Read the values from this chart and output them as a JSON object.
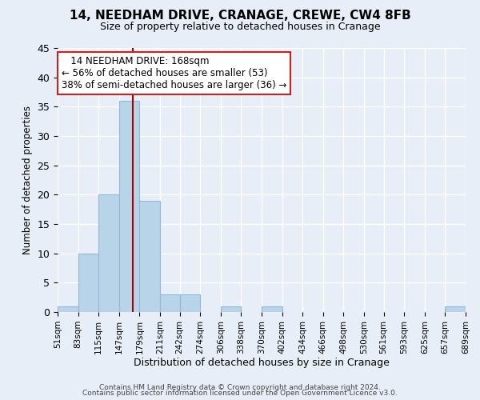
{
  "title": "14, NEEDHAM DRIVE, CRANAGE, CREWE, CW4 8FB",
  "subtitle": "Size of property relative to detached houses in Cranage",
  "xlabel": "Distribution of detached houses by size in Cranage",
  "ylabel": "Number of detached properties",
  "bin_edges": [
    51,
    83,
    115,
    147,
    179,
    211,
    242,
    274,
    306,
    338,
    370,
    402,
    434,
    466,
    498,
    530,
    561,
    593,
    625,
    657,
    689
  ],
  "bin_labels": [
    "51sqm",
    "83sqm",
    "115sqm",
    "147sqm",
    "179sqm",
    "211sqm",
    "242sqm",
    "274sqm",
    "306sqm",
    "338sqm",
    "370sqm",
    "402sqm",
    "434sqm",
    "466sqm",
    "498sqm",
    "530sqm",
    "561sqm",
    "593sqm",
    "625sqm",
    "657sqm",
    "689sqm"
  ],
  "counts": [
    1,
    10,
    20,
    36,
    19,
    3,
    3,
    0,
    1,
    0,
    1,
    0,
    0,
    0,
    0,
    0,
    0,
    0,
    0,
    1
  ],
  "bar_color": "#b8d4e8",
  "bar_edge_color": "#92b8d4",
  "vline_x": 168,
  "vline_color": "#aa0000",
  "annotation_title": "14 NEEDHAM DRIVE: 168sqm",
  "annotation_line1": "← 56% of detached houses are smaller (53)",
  "annotation_line2": "38% of semi-detached houses are larger (36) →",
  "annotation_box_facecolor": "#ffffff",
  "annotation_box_edgecolor": "#cc2222",
  "ylim": [
    0,
    45
  ],
  "yticks": [
    0,
    5,
    10,
    15,
    20,
    25,
    30,
    35,
    40,
    45
  ],
  "footer1": "Contains HM Land Registry data © Crown copyright and database right 2024.",
  "footer2": "Contains public sector information licensed under the Open Government Licence v3.0.",
  "background_color": "#e8eef8",
  "grid_color": "#ffffff",
  "title_fontsize": 11,
  "subtitle_fontsize": 9,
  "ylabel_fontsize": 8.5,
  "xlabel_fontsize": 9,
  "annotation_fontsize": 8.5,
  "footer_fontsize": 6.5
}
